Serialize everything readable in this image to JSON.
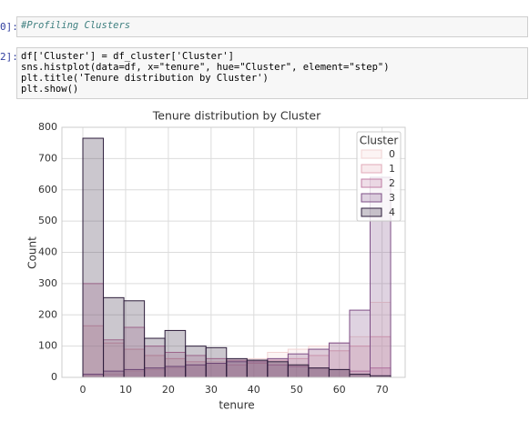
{
  "cells": [
    {
      "prompt": "0]:",
      "code": [
        "#Profiling Clusters"
      ]
    },
    {
      "prompt": "2]:",
      "code": [
        "df['Cluster'] = df_cluster['Cluster']",
        "sns.histplot(data=df, x=\"tenure\", hue=\"Cluster\", element=\"step\")",
        "plt.title('Tenure distribution by Cluster')",
        "plt.show()"
      ]
    }
  ],
  "chart_data": {
    "type": "histogram",
    "title": "Tenure distribution by Cluster",
    "x_label": "tenure",
    "y_label": "Count",
    "bins": [
      0,
      4.8,
      9.6,
      14.4,
      19.2,
      24,
      28.8,
      33.6,
      38.4,
      43.2,
      48,
      52.8,
      57.6,
      62.4,
      67.2,
      72
    ],
    "legend_title": "Cluster",
    "legend": "upper right",
    "grid": true,
    "series": [
      {
        "name": "0",
        "color": "#f2d4d4",
        "values": [
          5,
          10,
          20,
          25,
          30,
          40,
          50,
          55,
          60,
          80,
          90,
          100,
          110,
          130,
          240
        ]
      },
      {
        "name": "1",
        "color": "#e2aab8",
        "values": [
          165,
          110,
          90,
          70,
          60,
          50,
          45,
          40,
          45,
          55,
          60,
          70,
          85,
          100,
          130
        ]
      },
      {
        "name": "2",
        "color": "#c07ca4",
        "values": [
          300,
          120,
          160,
          100,
          80,
          70,
          60,
          55,
          50,
          40,
          35,
          30,
          25,
          20,
          30
        ]
      },
      {
        "name": "3",
        "color": "#7e4f86",
        "values": [
          10,
          20,
          25,
          30,
          35,
          40,
          45,
          50,
          55,
          60,
          75,
          90,
          110,
          215,
          640
        ]
      },
      {
        "name": "4",
        "color": "#2e1e3c",
        "values": [
          765,
          255,
          245,
          125,
          150,
          100,
          95,
          60,
          55,
          50,
          40,
          30,
          25,
          10,
          5
        ]
      }
    ],
    "xlim": [
      -4.9,
      75.4
    ],
    "xticks": [
      0,
      10,
      20,
      30,
      40,
      50,
      60,
      70
    ],
    "ylim": [
      0,
      800
    ],
    "yticks": [
      0,
      100,
      200,
      300,
      400,
      500,
      600,
      700,
      800
    ]
  }
}
